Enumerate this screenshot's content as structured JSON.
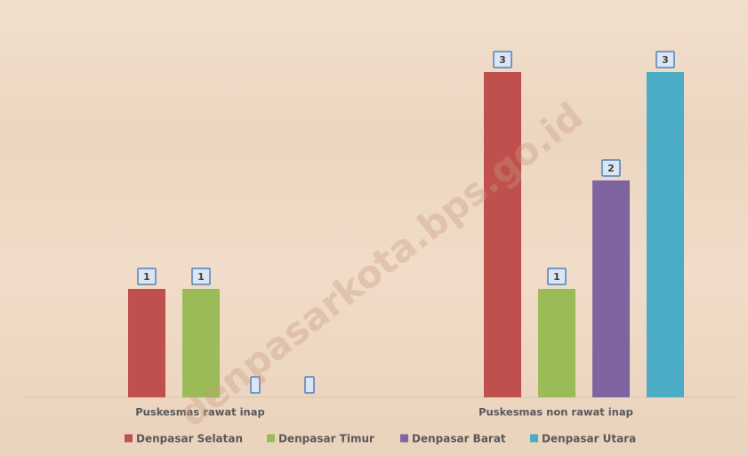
{
  "chart_data": {
    "type": "bar",
    "categories": [
      "Puskesmas rawat inap",
      "Puskesmas non rawat inap"
    ],
    "series": [
      {
        "name": "Denpasar Selatan",
        "color": "#c0504d",
        "values": [
          1,
          3
        ]
      },
      {
        "name": "Denpasar Timur",
        "color": "#9bbb59",
        "values": [
          1,
          1
        ]
      },
      {
        "name": "Denpasar Barat",
        "color": "#8064a2",
        "values": [
          0,
          2
        ]
      },
      {
        "name": "Denpasar Utara",
        "color": "#4bacc6",
        "values": [
          0,
          3
        ]
      }
    ],
    "ylim": [
      0,
      3.5
    ],
    "legend": "bottom",
    "watermark": "denpasarkota.bps.go.id"
  }
}
